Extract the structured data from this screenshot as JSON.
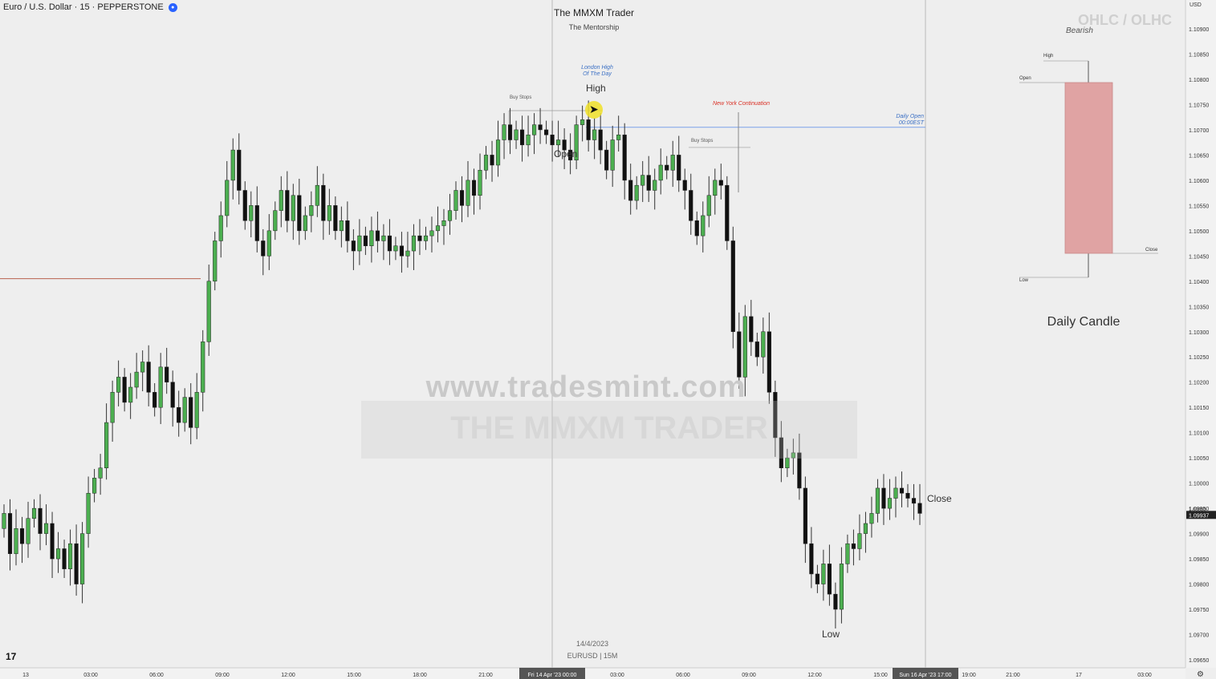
{
  "header": {
    "symbol_label": "Euro / U.S. Dollar · 15 · PEPPERSTONE",
    "title": "The MMXM Trader",
    "subtitle": "The Mentorship",
    "currency": "USD",
    "footer_date": "14/4/2023",
    "footer_symbol": "EURUSD | 15M"
  },
  "watermark": {
    "url": "www.tradesmint.com",
    "brand": "THE MMXM TRADER"
  },
  "annotations": {
    "london_high": "London High\nOf The Day",
    "high": "High",
    "open": "Open",
    "buy_stops_1": "Buy Stops",
    "buy_stops_2": "Buy Stops",
    "new_york": "New York Continuation",
    "daily_open": "Daily Open\n00:00EST",
    "close": "Close",
    "low": "Low"
  },
  "side_panel": {
    "ohlc_title": "OHLC / OLHC",
    "bearish": "Bearish",
    "high": "High",
    "open": "Open",
    "close": "Close",
    "low": "Low",
    "caption": "Daily Candle"
  },
  "colors": {
    "bull": "#4caf50",
    "bear": "#111111",
    "daily_open_line": "#7aa2e8",
    "red_line": "#b8604d",
    "new_york": "#d93025",
    "daily_candle_body": "#e0a3a3",
    "current_price_bg": "#222222"
  },
  "chart_data": {
    "type": "candlestick",
    "symbol": "EURUSD",
    "timeframe": "15",
    "price_ticks": [
      "1.10900",
      "1.10850",
      "1.10800",
      "1.10750",
      "1.10700",
      "1.10650",
      "1.10600",
      "1.10550",
      "1.10500",
      "1.10450",
      "1.10400",
      "1.10350",
      "1.10300",
      "1.10250",
      "1.10200",
      "1.10150",
      "1.10100",
      "1.10050",
      "1.10000",
      "1.09950",
      "1.09900",
      "1.09850",
      "1.09800",
      "1.09750",
      "1.09700",
      "1.09650"
    ],
    "current_price": "1.09937",
    "current_price_secondary": "1.09950",
    "time_ticks": [
      "13",
      "03:00",
      "06:00",
      "09:00",
      "12:00",
      "15:00",
      "18:00",
      "21:00",
      "Fri 14 Apr '23  00:00",
      "03:00",
      "06:00",
      "09:00",
      "12:00",
      "15:00",
      "Sun 16 Apr '23   17:00",
      "19:00",
      "21:00",
      "17",
      "03:00"
    ],
    "levels": {
      "daily_open": 1.10705,
      "red_level": 1.10405,
      "buy_stops_1": 1.10738,
      "buy_stops_2": 1.10665
    },
    "close_series": [
      1.0994,
      1.0986,
      1.0991,
      1.0988,
      1.0993,
      1.0995,
      1.099,
      1.0992,
      1.0985,
      1.0987,
      1.0983,
      1.0988,
      1.098,
      1.099,
      1.0998,
      1.1001,
      1.1003,
      1.1012,
      1.1018,
      1.1021,
      1.1016,
      1.1019,
      1.1022,
      1.1024,
      1.1018,
      1.1015,
      1.1023,
      1.102,
      1.1015,
      1.1012,
      1.1017,
      1.1011,
      1.1018,
      1.1028,
      1.104,
      1.1048,
      1.1053,
      1.106,
      1.1066,
      1.1058,
      1.1052,
      1.1055,
      1.1048,
      1.1045,
      1.105,
      1.1054,
      1.1058,
      1.1052,
      1.1057,
      1.105,
      1.1053,
      1.1055,
      1.1059,
      1.1052,
      1.1055,
      1.105,
      1.1052,
      1.1048,
      1.1046,
      1.1049,
      1.1047,
      1.105,
      1.1048,
      1.1049,
      1.1046,
      1.1047,
      1.1045,
      1.1046,
      1.1049,
      1.1048,
      1.1049,
      1.105,
      1.1051,
      1.1052,
      1.1054,
      1.1058,
      1.1055,
      1.106,
      1.1057,
      1.1062,
      1.1065,
      1.1063,
      1.1068,
      1.1071,
      1.1068,
      1.107,
      1.1067,
      1.1069,
      1.1071,
      1.107,
      1.1069,
      1.1067,
      1.1068,
      1.1066,
      1.1064,
      1.1071,
      1.1072,
      1.1068,
      1.107,
      1.1066,
      1.1062,
      1.1068,
      1.1069,
      1.106,
      1.1056,
      1.1059,
      1.1061,
      1.1058,
      1.106,
      1.1063,
      1.1062,
      1.1065,
      1.106,
      1.1058,
      1.1052,
      1.1049,
      1.1053,
      1.1057,
      1.106,
      1.1059,
      1.1048,
      1.103,
      1.1021,
      1.1033,
      1.1028,
      1.1025,
      1.103,
      1.1018,
      1.1009,
      1.1003,
      1.1005,
      1.1006,
      1.0999,
      1.0988,
      1.0982,
      1.098,
      1.0984,
      1.0978,
      1.0975,
      1.0984,
      1.0988,
      1.0987,
      1.099,
      1.0992,
      1.0994,
      1.0999,
      1.0995,
      1.0997,
      1.0999,
      1.0998,
      1.0997,
      1.0996,
      1.0994
    ]
  }
}
